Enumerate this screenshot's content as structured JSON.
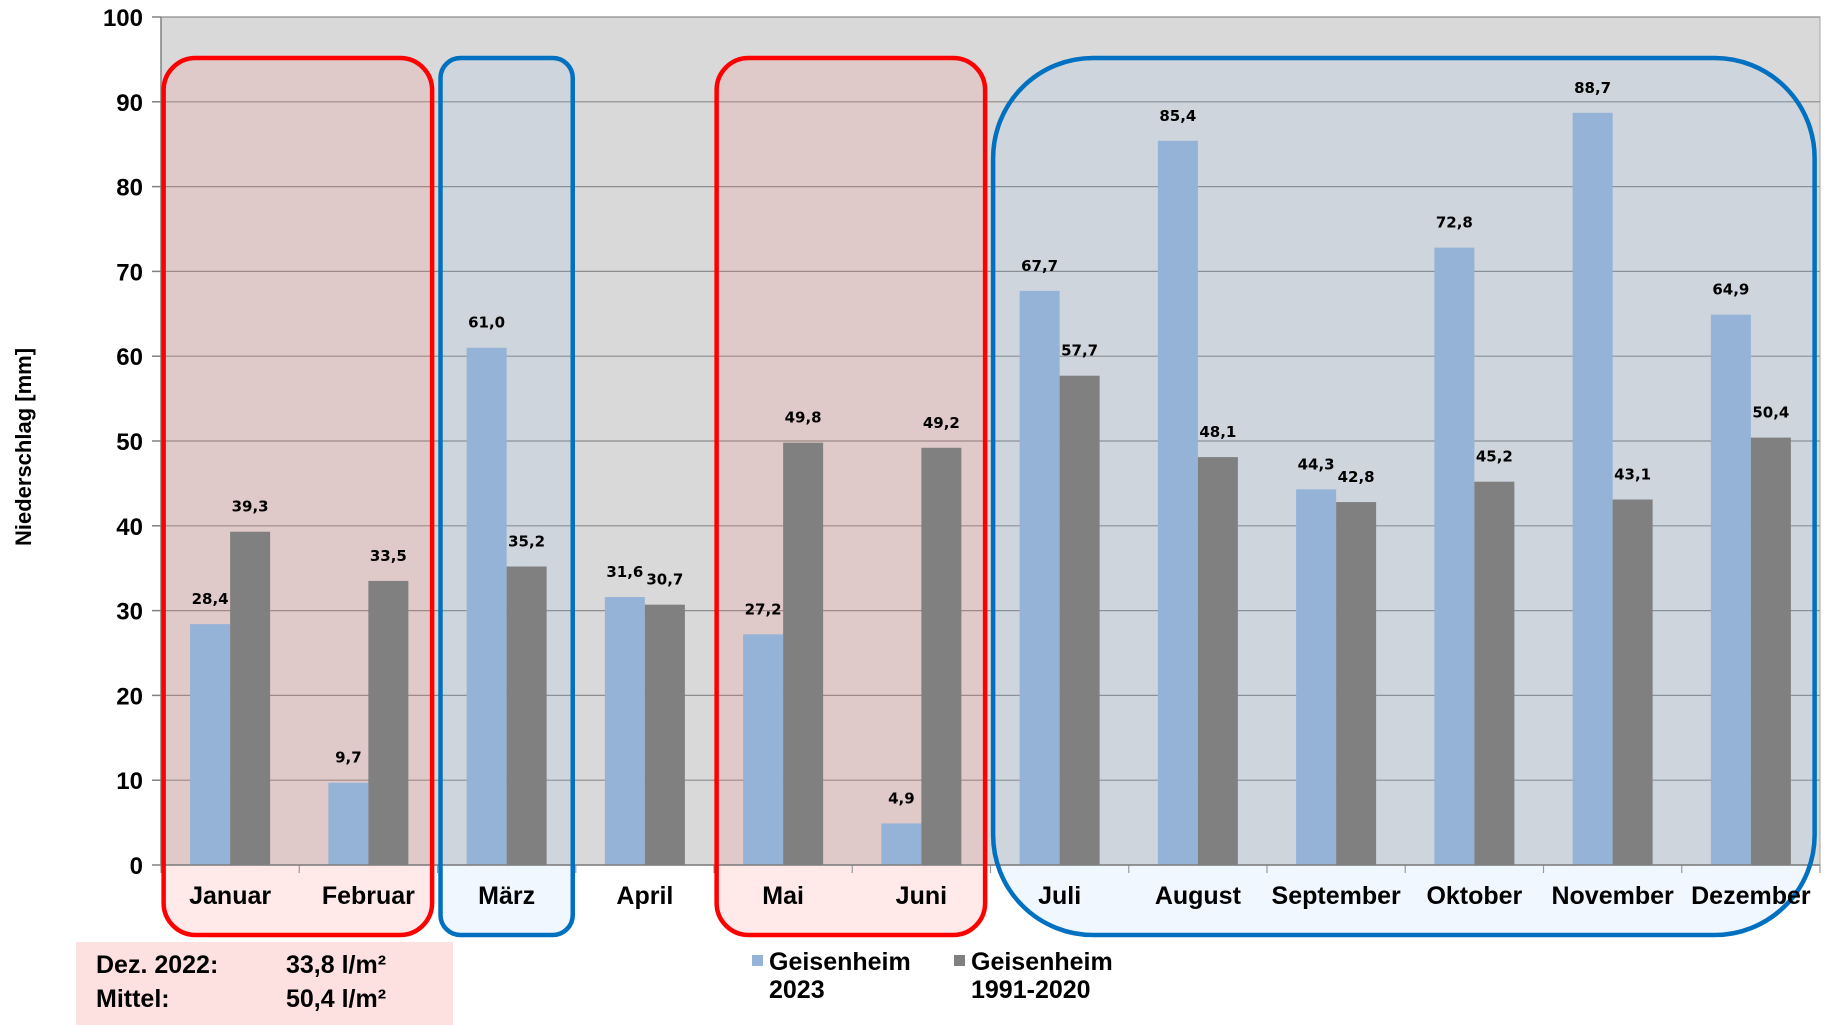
{
  "chart_data": {
    "type": "bar",
    "ylabel": "Niederschlag [mm]",
    "xlabel": "",
    "ylim": [
      0,
      100
    ],
    "yticks": [
      "0",
      "10",
      "20",
      "30",
      "40",
      "50",
      "60",
      "70",
      "80",
      "90",
      "100"
    ],
    "grid": true,
    "categories": [
      "Januar",
      "Februar",
      "März",
      "April",
      "Mai",
      "Juni",
      "Juli",
      "August",
      "September",
      "Oktober",
      "November",
      "Dezember"
    ],
    "series": [
      {
        "name": "Geisenheim 2023",
        "name_lines": [
          "Geisenheim",
          "2023"
        ],
        "color": "#95b3d7",
        "values": [
          28.4,
          9.7,
          61.0,
          31.6,
          27.2,
          4.9,
          67.7,
          85.4,
          44.3,
          72.8,
          88.7,
          64.9
        ],
        "labels": [
          "28,4",
          "9,7",
          "61,0",
          "31,6",
          "27,2",
          "4,9",
          "67,7",
          "85,4",
          "44,3",
          "72,8",
          "88,7",
          "64,9"
        ]
      },
      {
        "name": "Geisenheim 1991-2020",
        "name_lines": [
          "Geisenheim",
          "1991-2020"
        ],
        "color": "#808080",
        "values": [
          39.3,
          33.5,
          35.2,
          30.7,
          49.8,
          49.2,
          57.7,
          48.1,
          42.8,
          45.2,
          43.1,
          50.4
        ],
        "labels": [
          "39,3",
          "33,5",
          "35,2",
          "30,7",
          "49,8",
          "49,2",
          "57,7",
          "48,1",
          "42,8",
          "45,2",
          "43,1",
          "50,4"
        ]
      }
    ],
    "legend_position": "bottom",
    "highlight_groups": [
      {
        "months": [
          "Januar",
          "Februar"
        ],
        "color": "#ff0000",
        "meaning": "dry"
      },
      {
        "months": [
          "März"
        ],
        "color": "#0070c0",
        "meaning": "wet"
      },
      {
        "months": [
          "Mai",
          "Juni"
        ],
        "color": "#ff0000",
        "meaning": "dry"
      },
      {
        "months": [
          "Juli",
          "August",
          "September",
          "Oktober",
          "November",
          "Dezember"
        ],
        "color": "#0070c0",
        "meaning": "wet"
      }
    ],
    "plot_background": "#d9d9d9"
  },
  "info_box": {
    "row1_key": "Dez. 2022:",
    "row1_val": "33,8 l/m²",
    "row2_key": "Mittel:",
    "row2_val": "50,4 l/m²",
    "background": "#fde0e0"
  }
}
